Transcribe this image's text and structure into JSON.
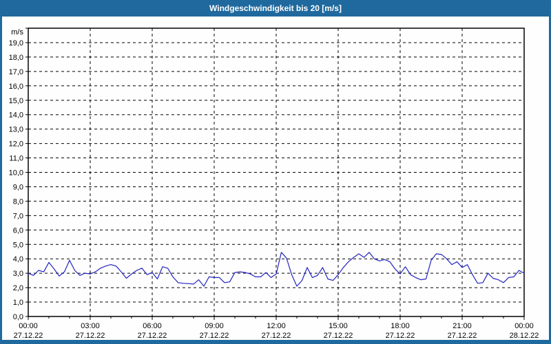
{
  "window": {
    "title": "Windgeschwindigkeit bis 20 [m/s]"
  },
  "colors": {
    "chrome_blue": "#1f699e",
    "plot_line": "#2323c1",
    "grid": "#000000",
    "plot_background": "#fdfefd"
  },
  "chart_data": {
    "type": "line",
    "title": "Windgeschwindigkeit bis 20 [m/s]",
    "unit_label": "m/s",
    "ylim": [
      0,
      20
    ],
    "y_tick_step": 1,
    "y_tick_labels": [
      "0,0",
      "1,0",
      "2,0",
      "3,0",
      "4,0",
      "5,0",
      "6,0",
      "7,0",
      "8,0",
      "9,0",
      "10,0",
      "11,0",
      "12,0",
      "13,0",
      "14,0",
      "15,0",
      "16,0",
      "17,0",
      "18,0",
      "19,0"
    ],
    "xlim_hours": [
      0,
      24
    ],
    "x_minor_step_hours": 1,
    "grid": "dashed",
    "legend_position": "none",
    "x_major_ticks": [
      {
        "hour": 0,
        "label": "00:00",
        "date": "27.12.22"
      },
      {
        "hour": 3,
        "label": "03:00",
        "date": "27.12.22"
      },
      {
        "hour": 6,
        "label": "06:00",
        "date": "27.12.22"
      },
      {
        "hour": 9,
        "label": "09:00",
        "date": "27.12.22"
      },
      {
        "hour": 12,
        "label": "12:00",
        "date": "27.12.22"
      },
      {
        "hour": 15,
        "label": "15:00",
        "date": "27.12.22"
      },
      {
        "hour": 18,
        "label": "18:00",
        "date": "27.12.22"
      },
      {
        "hour": 21,
        "label": "21:00",
        "date": "27.12.22"
      },
      {
        "hour": 24,
        "label": "00:00",
        "date": "28.12.22"
      }
    ],
    "series": [
      {
        "name": "Windgeschwindigkeit",
        "color": "#2323c1",
        "x_hours": [
          0,
          0.25,
          0.5,
          0.75,
          1,
          1.25,
          1.5,
          1.75,
          2,
          2.25,
          2.5,
          2.75,
          3,
          3.25,
          3.5,
          3.75,
          4,
          4.25,
          4.5,
          4.75,
          5,
          5.25,
          5.5,
          5.75,
          6,
          6.25,
          6.5,
          6.75,
          7,
          7.25,
          7.5,
          7.75,
          8,
          8.25,
          8.5,
          8.75,
          9,
          9.25,
          9.5,
          9.75,
          10,
          10.25,
          10.5,
          10.75,
          11,
          11.25,
          11.5,
          11.75,
          12,
          12.25,
          12.5,
          12.75,
          13,
          13.25,
          13.5,
          13.75,
          14,
          14.25,
          14.5,
          14.75,
          15,
          15.25,
          15.5,
          15.75,
          16,
          16.25,
          16.5,
          16.75,
          17,
          17.25,
          17.5,
          17.75,
          18,
          18.25,
          18.5,
          18.75,
          19,
          19.25,
          19.5,
          19.75,
          20,
          20.25,
          20.5,
          20.75,
          21,
          21.25,
          21.5,
          21.75,
          22,
          22.25,
          22.5,
          22.75,
          23,
          23.25,
          23.5,
          23.75,
          24
        ],
        "values": [
          3.0,
          2.85,
          3.2,
          3.1,
          3.75,
          3.3,
          2.8,
          3.1,
          3.9,
          3.2,
          2.85,
          3.0,
          2.95,
          3.1,
          3.35,
          3.5,
          3.6,
          3.5,
          3.1,
          2.65,
          2.95,
          3.2,
          3.35,
          2.9,
          3.05,
          2.6,
          3.45,
          3.35,
          2.75,
          2.35,
          2.3,
          2.28,
          2.25,
          2.55,
          2.1,
          2.75,
          2.7,
          2.7,
          2.35,
          2.4,
          3.05,
          3.1,
          3.05,
          2.95,
          2.75,
          2.75,
          3.05,
          2.7,
          2.95,
          4.45,
          4.05,
          2.9,
          2.1,
          2.5,
          3.4,
          2.7,
          2.85,
          3.4,
          2.6,
          2.5,
          2.9,
          3.4,
          3.8,
          4.1,
          4.35,
          4.1,
          4.45,
          4.0,
          3.85,
          3.95,
          3.8,
          3.3,
          2.95,
          3.45,
          2.9,
          2.7,
          2.55,
          2.6,
          3.9,
          4.35,
          4.3,
          4.0,
          3.6,
          3.8,
          3.4,
          3.6,
          2.9,
          2.3,
          2.35,
          3.0,
          2.65,
          2.55,
          2.35,
          2.7,
          2.75,
          3.2,
          3.0
        ]
      }
    ]
  }
}
